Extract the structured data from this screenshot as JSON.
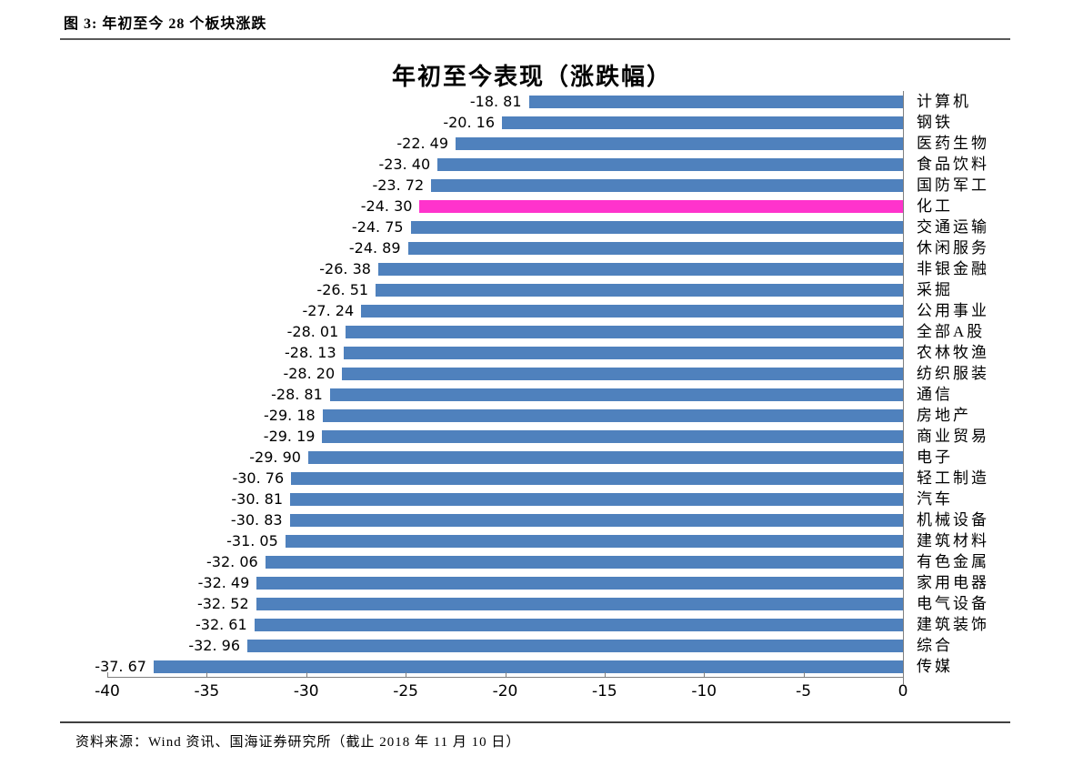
{
  "figure_header": {
    "label": "图 3: 年初至今 28 个板块涨跌"
  },
  "chart_data": {
    "type": "bar",
    "orientation": "horizontal",
    "title": "年初至今表现（涨跌幅）",
    "categories": [
      "计算机",
      "钢铁",
      "医药生物",
      "食品饮料",
      "国防军工",
      "化工",
      "交通运输",
      "休闲服务",
      "非银金融",
      "采掘",
      "公用事业",
      "全部A股",
      "农林牧渔",
      "纺织服装",
      "通信",
      "房地产",
      "商业贸易",
      "电子",
      "轻工制造",
      "汽车",
      "机械设备",
      "建筑材料",
      "有色金属",
      "家用电器",
      "电气设备",
      "建筑装饰",
      "综合",
      "传媒"
    ],
    "values": [
      -18.81,
      -20.16,
      -22.49,
      -23.4,
      -23.72,
      -24.3,
      -24.75,
      -24.89,
      -26.38,
      -26.51,
      -27.24,
      -28.01,
      -28.13,
      -28.2,
      -28.81,
      -29.18,
      -29.19,
      -29.9,
      -30.76,
      -30.81,
      -30.83,
      -31.05,
      -32.06,
      -32.49,
      -32.52,
      -32.61,
      -32.96,
      -37.67
    ],
    "value_labels": [
      "-18. 81",
      "-20. 16",
      "-22. 49",
      "-23. 40",
      "-23. 72",
      "-24. 30",
      "-24. 75",
      "-24. 89",
      "-26. 38",
      "-26. 51",
      "-27. 24",
      "-28. 01",
      "-28. 13",
      "-28. 20",
      "-28. 81",
      "-29. 18",
      "-29. 19",
      "-29. 90",
      "-30. 76",
      "-30. 81",
      "-30. 83",
      "-31. 05",
      "-32. 06",
      "-32. 49",
      "-32. 52",
      "-32. 61",
      "-32. 96",
      "-37. 67"
    ],
    "highlight_category": "化工",
    "highlight_index": 5,
    "bar_color": "#4F81BD",
    "highlight_color": "#FF33CC",
    "axis_color": "#7F7F7F",
    "xlim": [
      -40,
      0
    ],
    "x_ticks": [
      -40,
      -35,
      -30,
      -25,
      -20,
      -15,
      -10,
      -5,
      0
    ],
    "x_tick_labels": [
      "-40",
      "-35",
      "-30",
      "-25",
      "-20",
      "-15",
      "-10",
      "-5",
      "0"
    ],
    "grid": false,
    "legend": "none"
  },
  "footer": {
    "source": "资料来源：Wind 资讯、国海证券研究所（截止 2018 年 11 月 10 日）"
  }
}
